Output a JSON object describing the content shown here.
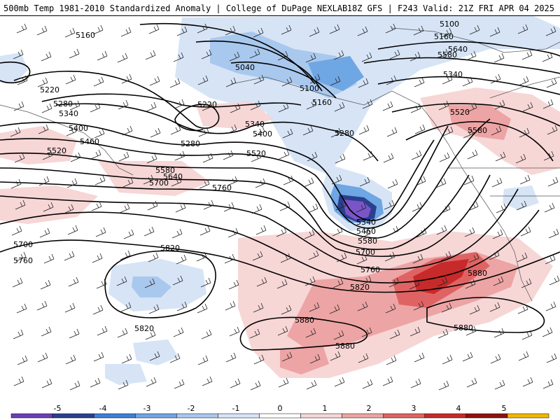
{
  "header": {
    "title": "500mb Temp 1981-2010 Standardized Anomaly | College of DuPage NEXLAB",
    "run_info": "18Z GFS | F243 Valid: 21Z FRI APR 04 2025"
  },
  "contour_labels": [
    "5160",
    "5220",
    "5280",
    "5340",
    "5400",
    "5460",
    "5520",
    "5580",
    "5640",
    "5700",
    "5760",
    "5820",
    "5880",
    "5040",
    "5100",
    "5100",
    "5160",
    "5220",
    "5280",
    "5340",
    "5400",
    "5520",
    "5580",
    "5640",
    "5700",
    "5760",
    "5820",
    "5820",
    "5820",
    "5880",
    "5880",
    "5880",
    "5100",
    "5160",
    "5220",
    "5340",
    "5520",
    "5580",
    "5880",
    "5280",
    "5340",
    "5460",
    "5580",
    "5700",
    "5760",
    "5820",
    "5700",
    "5760"
  ],
  "colorbar": {
    "labels": [
      "-5",
      "-4",
      "-3",
      "-2",
      "-1",
      "0",
      "1",
      "2",
      "3",
      "4",
      "5"
    ],
    "colors": [
      "#6a3fb5",
      "#2b3f8f",
      "#3f7fd6",
      "#6fa6e4",
      "#a9c8ee",
      "#d6e4f6",
      "#ffffff",
      "#f7d6d6",
      "#eda4a4",
      "#e06363",
      "#c72a2a",
      "#8e1010",
      "#f2b705"
    ]
  }
}
